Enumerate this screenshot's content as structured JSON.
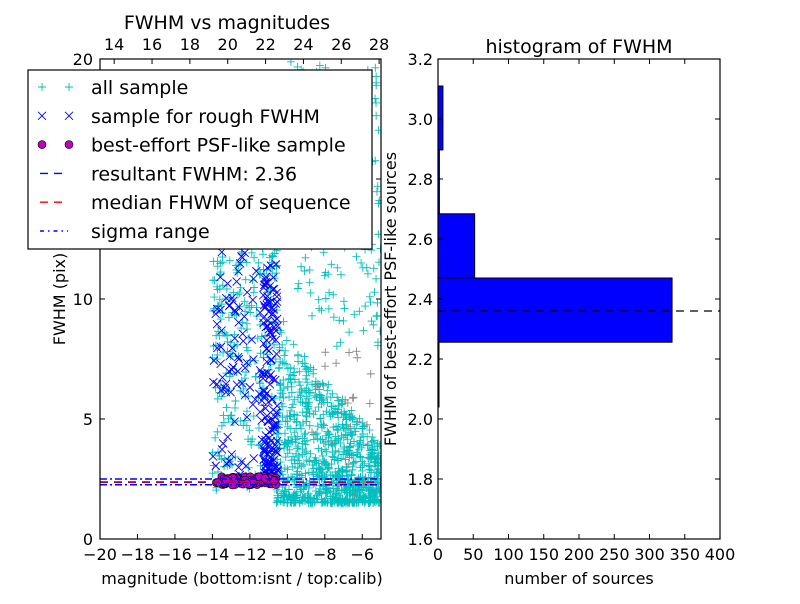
{
  "chart_data": [
    {
      "type": "scatter",
      "title": "FWHM vs magnitudes",
      "xlabel": "magnitude (bottom:isnt / top:calib)",
      "ylabel": "FWHM (pix)",
      "xlim": [
        -20,
        -5
      ],
      "ylim": [
        0,
        20
      ],
      "xticks": [
        "−20",
        "−18",
        "−16",
        "−14",
        "−12",
        "−10",
        "−8",
        "−6"
      ],
      "xtick_values": [
        -20,
        -18,
        -16,
        -14,
        -12,
        -10,
        -8,
        -6
      ],
      "yticks": [
        "0",
        "5",
        "10",
        "15",
        "20"
      ],
      "ytick_values": [
        0,
        5,
        10,
        15,
        20
      ],
      "top_xticks": [
        "14",
        "16",
        "18",
        "20",
        "22",
        "24",
        "26",
        "28"
      ],
      "top_xtick_values": [
        14,
        16,
        18,
        20,
        22,
        24,
        26,
        28
      ],
      "top_xlim": [
        13.25,
        28.1
      ],
      "grid": false,
      "legend_placement": "upper-left",
      "legend": [
        {
          "label": "all sample",
          "marker": "+",
          "color": "#00bfbf"
        },
        {
          "label": "sample for rough FWHM",
          "marker": "x",
          "color": "#0000ff"
        },
        {
          "label": "best-effort PSF-like sample",
          "marker": "o",
          "color": "#bf00bf"
        },
        {
          "label": "resultant FWHM: 2.36",
          "line": "dashed",
          "color": "#0000ff"
        },
        {
          "label": "median FHWM of sequence",
          "line": "dashed",
          "color": "#ff0000"
        },
        {
          "label": "sigma range",
          "line": "dashdot",
          "color": "#0000ff"
        }
      ],
      "hlines": [
        {
          "series": "resultant FWHM",
          "y": 2.36,
          "color": "#0000ff",
          "style": "dashed"
        },
        {
          "series": "median FHWM of sequence",
          "y": 2.38,
          "color": "#ff0000",
          "style": "dashed"
        },
        {
          "series": "sigma range low",
          "y": 2.26,
          "color": "#0000ff",
          "style": "dashdot"
        },
        {
          "series": "sigma range high",
          "y": 2.5,
          "color": "#0000ff",
          "style": "dashdot"
        }
      ],
      "series_clusters": [
        {
          "series": "all sample",
          "marker": "+",
          "color": "#00bfbf",
          "x": [
            -10.6,
            -5
          ],
          "y": [
            1.5,
            9
          ],
          "count": 900,
          "shape": "decreasing"
        },
        {
          "series": "all sample",
          "marker": "+",
          "color": "#00bfbf",
          "x": [
            -14,
            -10.5
          ],
          "y": [
            2,
            14
          ],
          "count": 300,
          "shape": "uniform"
        },
        {
          "series": "all sample",
          "marker": "+",
          "color": "#00bfbf",
          "x": [
            -11,
            -5
          ],
          "y": [
            8,
            20
          ],
          "count": 180,
          "shape": "uniform"
        },
        {
          "series": "all sample (other)",
          "marker": "+",
          "color": "#888888",
          "x": [
            -9,
            -5
          ],
          "y": [
            1.5,
            8
          ],
          "count": 25,
          "shape": "uniform"
        },
        {
          "series": "sample for rough FWHM",
          "marker": "x",
          "color": "#0000ff",
          "x": [
            -14,
            -11.3
          ],
          "y": [
            2.5,
            12
          ],
          "count": 90,
          "shape": "uniform"
        },
        {
          "series": "sample for rough FWHM",
          "marker": "x",
          "color": "#0000ff",
          "x": [
            -11.3,
            -10.5
          ],
          "y": [
            2.4,
            11.5
          ],
          "count": 160,
          "shape": "bottom-heavy"
        },
        {
          "series": "best-effort PSF-like sample",
          "marker": "o",
          "color": "#bf00bf",
          "x": [
            -13.8,
            -10.6
          ],
          "y": [
            2.25,
            2.6
          ],
          "count": 80,
          "shape": "uniform"
        }
      ]
    },
    {
      "type": "bar",
      "orientation": "horizontal",
      "title": "histogram of FWHM",
      "xlabel": "number of sources",
      "ylabel": "FWHM of best-effort PSF-like sources",
      "xlim": [
        0,
        400
      ],
      "ylim": [
        1.6,
        3.2
      ],
      "xticks": [
        "0",
        "50",
        "100",
        "150",
        "200",
        "250",
        "300",
        "350",
        "400"
      ],
      "xtick_values": [
        0,
        50,
        100,
        150,
        200,
        250,
        300,
        350,
        400
      ],
      "yticks": [
        "1.6",
        "1.8",
        "2.0",
        "2.2",
        "2.4",
        "2.6",
        "2.8",
        "3.0",
        "3.2"
      ],
      "ytick_values": [
        1.6,
        1.8,
        2.0,
        2.2,
        2.4,
        2.6,
        2.8,
        3.0,
        3.2
      ],
      "bins": [
        [
          2.04,
          2.256
        ],
        [
          2.256,
          2.47
        ],
        [
          2.47,
          2.684
        ],
        [
          2.684,
          2.897
        ],
        [
          2.897,
          3.11
        ]
      ],
      "values": [
        1,
        332,
        52,
        2,
        7
      ],
      "bar_color": "#0000ff",
      "hline": {
        "y": 2.36,
        "color": "#000000",
        "style": "dashed"
      }
    }
  ]
}
